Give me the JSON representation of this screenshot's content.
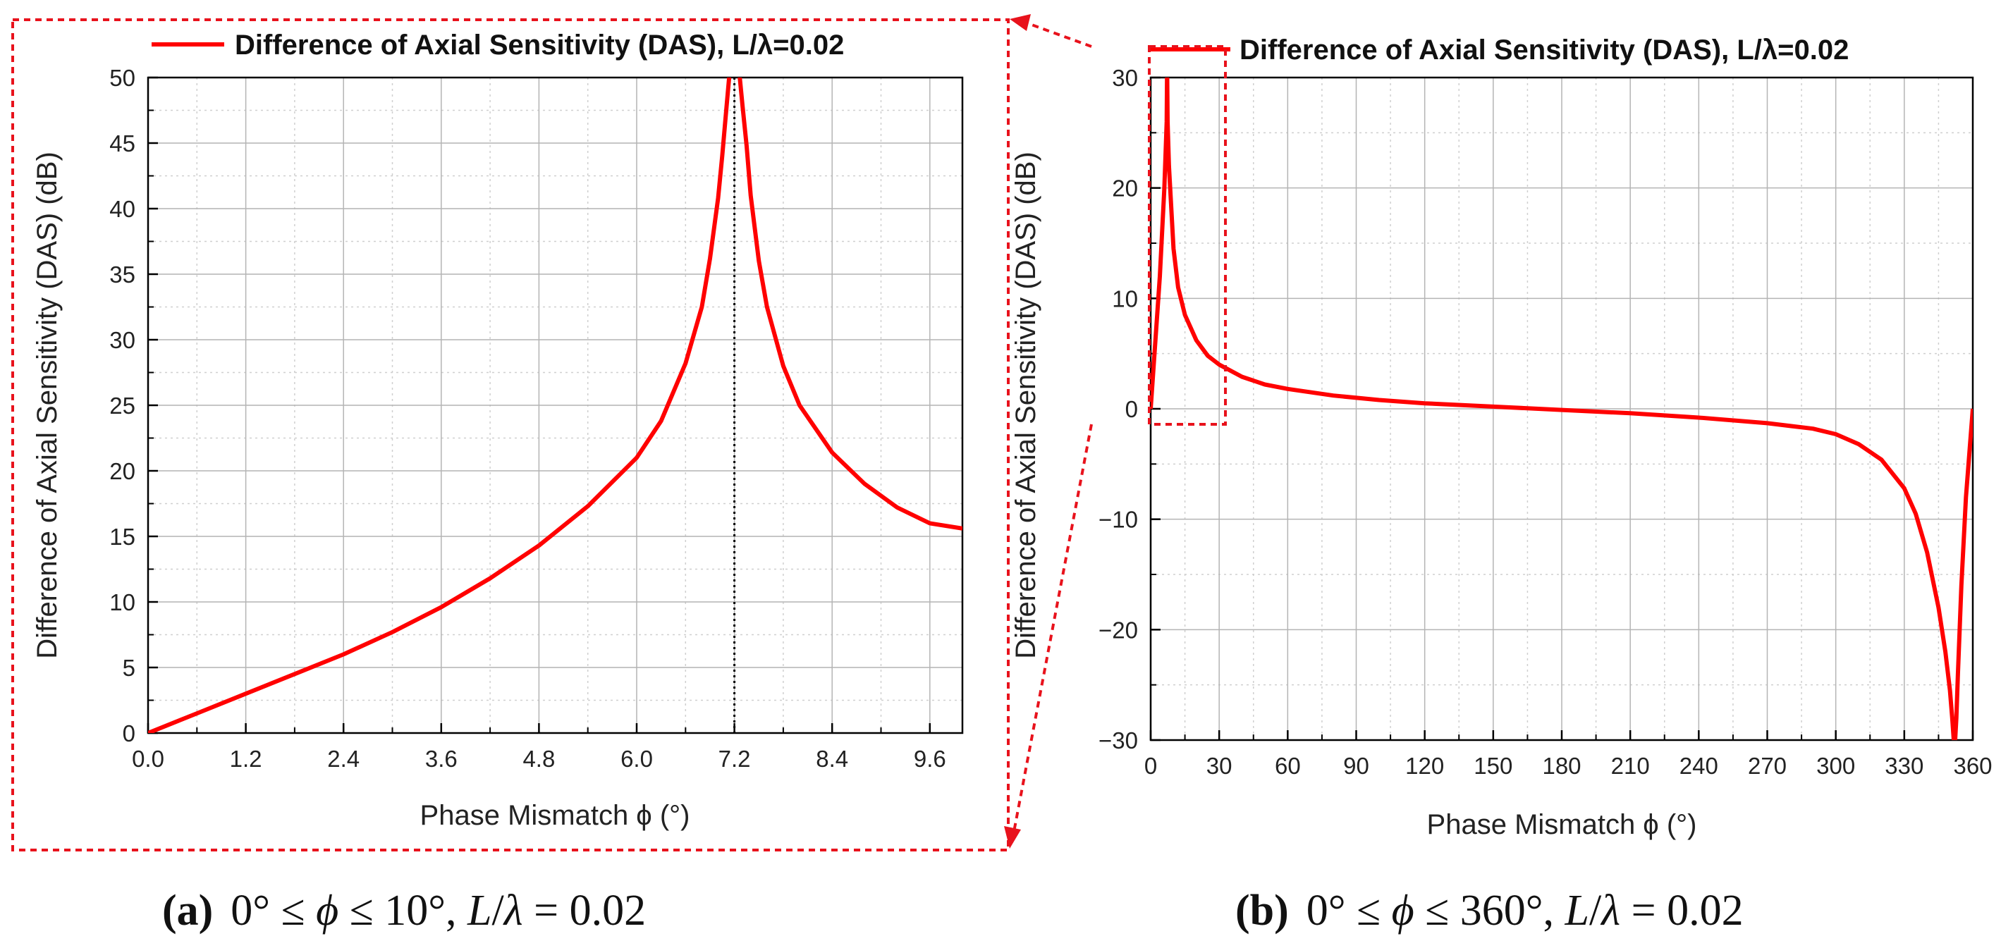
{
  "colors": {
    "series": "#ff0000",
    "callout": "#e8121c",
    "major_grid": "#b4b4b4",
    "minor_grid": "#cfcfcf",
    "axis": "#000000",
    "marker_line": "#000000"
  },
  "chart_data": [
    {
      "type": "line",
      "panel": "a",
      "legend": "Difference of Axial Sensitivity (DAS), L/λ=0.02",
      "xlabel": "Phase Mismatch ϕ (°)",
      "ylabel": "Difference of Axial Sensitivity (DAS) (dB)",
      "xlim": [
        0,
        10
      ],
      "ylim": [
        0,
        50
      ],
      "xticks": [
        "0.0",
        "1.2",
        "2.4",
        "3.6",
        "4.8",
        "6.0",
        "7.2",
        "8.4",
        "9.6"
      ],
      "xtick_values": [
        0,
        1.2,
        2.4,
        3.6,
        4.8,
        6.0,
        7.2,
        8.4,
        9.6
      ],
      "yticks": [
        "0",
        "5",
        "10",
        "15",
        "20",
        "25",
        "30",
        "35",
        "40",
        "45",
        "50"
      ],
      "ytick_values": [
        0,
        5,
        10,
        15,
        20,
        25,
        30,
        35,
        40,
        45,
        50
      ],
      "vline_x": 7.2,
      "series": [
        {
          "name": "Difference of Axial Sensitivity (DAS), L/λ=0.02",
          "x": [
            0,
            0.6,
            1.2,
            1.8,
            2.4,
            3.0,
            3.6,
            4.2,
            4.8,
            5.4,
            6.0,
            6.3,
            6.6,
            6.8,
            6.9,
            7.0,
            7.05,
            7.1,
            7.15,
            7.25,
            7.3,
            7.35,
            7.4,
            7.5,
            7.6,
            7.8,
            8.0,
            8.4,
            8.8,
            9.2,
            9.6,
            10.0
          ],
          "y": [
            0,
            1.5,
            3.0,
            4.5,
            6.0,
            7.7,
            9.6,
            11.8,
            14.3,
            17.3,
            21.0,
            23.8,
            28.2,
            32.5,
            36.2,
            40.8,
            44.0,
            47.5,
            51.0,
            51.0,
            47.8,
            44.8,
            41.0,
            36.0,
            32.5,
            28.0,
            25.0,
            21.4,
            19.0,
            17.2,
            16.0,
            15.6
          ]
        }
      ],
      "caption": {
        "label": "(a)",
        "text_parts": [
          "0° ≤ ",
          "ϕ",
          " ≤ 10°,  ",
          "L",
          "/",
          "λ",
          "  = 0.02"
        ]
      }
    },
    {
      "type": "line",
      "panel": "b",
      "legend": "Difference of Axial Sensitivity (DAS), L/λ=0.02",
      "xlabel": "Phase Mismatch ϕ (°)",
      "ylabel": "Difference of Axial Sensitivity (DAS) (dB)",
      "xlim": [
        0,
        360
      ],
      "ylim": [
        -30,
        30
      ],
      "xticks": [
        "0",
        "30",
        "60",
        "90",
        "120",
        "150",
        "180",
        "210",
        "240",
        "270",
        "300",
        "330",
        "360"
      ],
      "xtick_values": [
        0,
        30,
        60,
        90,
        120,
        150,
        180,
        210,
        240,
        270,
        300,
        330,
        360
      ],
      "yticks": [
        "−30",
        "−20",
        "−10",
        "0",
        "10",
        "20",
        "30"
      ],
      "ytick_values": [
        -30,
        -20,
        -10,
        0,
        10,
        20,
        30
      ],
      "series": [
        {
          "name": "Difference of Axial Sensitivity (DAS), L/λ=0.02",
          "x": [
            0,
            2,
            4,
            6,
            7,
            7.2,
            7.4,
            8,
            10,
            12,
            15,
            20,
            25,
            30,
            40,
            50,
            60,
            80,
            100,
            120,
            150,
            180,
            210,
            240,
            270,
            290,
            300,
            310,
            320,
            330,
            335,
            340,
            345,
            348,
            350,
            351,
            352,
            352.8,
            353.5,
            355,
            357,
            360
          ],
          "y": [
            0,
            6,
            12,
            20,
            26,
            31,
            26,
            22,
            14.5,
            11,
            8.5,
            6.2,
            4.8,
            4.0,
            2.9,
            2.2,
            1.8,
            1.2,
            0.8,
            0.5,
            0.2,
            -0.1,
            -0.4,
            -0.8,
            -1.3,
            -1.8,
            -2.3,
            -3.2,
            -4.6,
            -7.2,
            -9.5,
            -13,
            -18,
            -22,
            -25.5,
            -28,
            -31,
            -28,
            -24,
            -16,
            -8,
            0
          ]
        }
      ],
      "caption": {
        "label": "(b)",
        "text_parts": [
          "0° ≤ ",
          "ϕ",
          " ≤ 360°,  ",
          "L",
          "/",
          "λ",
          "  = 0.02"
        ]
      }
    }
  ]
}
